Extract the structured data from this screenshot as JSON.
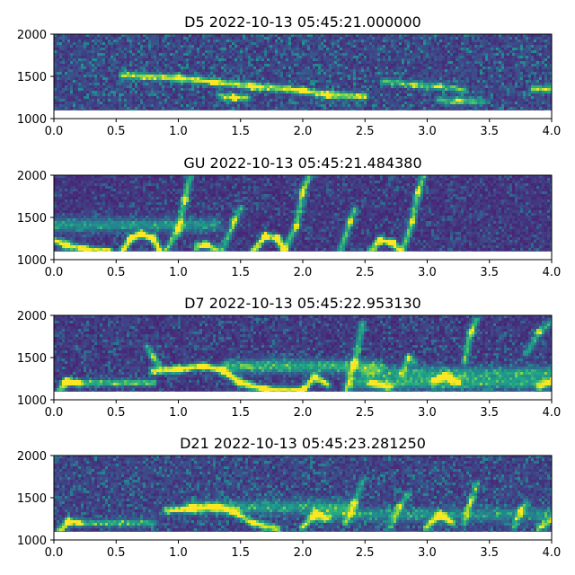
{
  "chart_data": [
    {
      "type": "heatmap",
      "title": "D5 2022-10-13 05:45:21.000000",
      "xlim": [
        0.0,
        4.0
      ],
      "ylim": [
        1000,
        2000
      ],
      "xticks": [
        "0.0",
        "0.5",
        "1.0",
        "1.5",
        "2.0",
        "2.5",
        "3.0",
        "3.5",
        "4.0"
      ],
      "yticks": [
        "1000",
        "1500",
        "2000"
      ],
      "grid": false,
      "colormap": "viridis",
      "band_fill_range": [
        1100,
        2000
      ],
      "background_level": 0.12,
      "noise_level": 0.45,
      "tracks": [
        {
          "points": [
            [
              0.55,
              1510
            ],
            [
              1.0,
              1480
            ],
            [
              1.3,
              1430
            ],
            [
              1.6,
              1380
            ],
            [
              2.0,
              1330
            ],
            [
              2.2,
              1280
            ],
            [
              2.5,
              1260
            ]
          ],
          "intensity": 0.72
        },
        {
          "points": [
            [
              1.35,
              1260
            ],
            [
              1.45,
              1250
            ],
            [
              1.55,
              1240
            ]
          ],
          "intensity": 0.6
        },
        {
          "points": [
            [
              2.65,
              1440
            ],
            [
              2.9,
              1400
            ],
            [
              3.1,
              1380
            ],
            [
              3.3,
              1330
            ]
          ],
          "intensity": 0.45
        },
        {
          "points": [
            [
              3.1,
              1220
            ],
            [
              3.25,
              1210
            ],
            [
              3.45,
              1200
            ]
          ],
          "intensity": 0.45
        },
        {
          "points": [
            [
              3.85,
              1350
            ],
            [
              4.0,
              1350
            ]
          ],
          "intensity": 0.65
        }
      ]
    },
    {
      "type": "heatmap",
      "title": "GU 2022-10-13 05:45:21.484380",
      "xlim": [
        0.0,
        4.0
      ],
      "ylim": [
        1000,
        2000
      ],
      "xticks": [
        "0.0",
        "0.5",
        "1.0",
        "1.5",
        "2.0",
        "2.5",
        "3.0",
        "3.5",
        "4.0"
      ],
      "yticks": [
        "1000",
        "1500",
        "2000"
      ],
      "grid": false,
      "colormap": "viridis",
      "band_fill_range": [
        1100,
        2000
      ],
      "background_level": 0.1,
      "noise_level": 0.3,
      "tracks": [
        {
          "points": [
            [
              0.0,
              1230
            ],
            [
              0.1,
              1170
            ],
            [
              0.25,
              1120
            ],
            [
              0.45,
              1100
            ]
          ],
          "intensity": 0.85
        },
        {
          "points": [
            [
              0.55,
              1100
            ],
            [
              0.62,
              1250
            ],
            [
              0.7,
              1300
            ],
            [
              0.8,
              1250
            ],
            [
              0.85,
              1100
            ]
          ],
          "intensity": 0.9
        },
        {
          "points": [
            [
              0.9,
              1100
            ],
            [
              1.0,
              1350
            ],
            [
              1.05,
              1700
            ],
            [
              1.1,
              2000
            ]
          ],
          "intensity": 0.55
        },
        {
          "points": [
            [
              1.15,
              1150
            ],
            [
              1.22,
              1180
            ],
            [
              1.3,
              1120
            ]
          ],
          "intensity": 0.75
        },
        {
          "points": [
            [
              1.35,
              1100
            ],
            [
              1.45,
              1450
            ],
            [
              1.5,
              1600
            ]
          ],
          "intensity": 0.5
        },
        {
          "points": [
            [
              1.6,
              1100
            ],
            [
              1.7,
              1280
            ],
            [
              1.8,
              1250
            ],
            [
              1.85,
              1100
            ]
          ],
          "intensity": 0.8
        },
        {
          "points": [
            [
              1.85,
              1100
            ],
            [
              1.95,
              1400
            ],
            [
              2.0,
              1800
            ],
            [
              2.05,
              2000
            ]
          ],
          "intensity": 0.55
        },
        {
          "points": [
            [
              2.3,
              1100
            ],
            [
              2.38,
              1450
            ],
            [
              2.42,
              1600
            ]
          ],
          "intensity": 0.5
        },
        {
          "points": [
            [
              2.55,
              1100
            ],
            [
              2.62,
              1230
            ],
            [
              2.72,
              1200
            ],
            [
              2.78,
              1100
            ]
          ],
          "intensity": 0.75
        },
        {
          "points": [
            [
              2.8,
              1100
            ],
            [
              2.88,
              1450
            ],
            [
              2.93,
              1800
            ],
            [
              2.97,
              2000
            ]
          ],
          "intensity": 0.55
        }
      ],
      "bands": [
        {
          "y": 1410,
          "x_range": [
            0.0,
            1.3
          ],
          "intensity": 0.35
        }
      ]
    },
    {
      "type": "heatmap",
      "title": "D7 2022-10-13 05:45:22.953130",
      "xlim": [
        0.0,
        4.0
      ],
      "ylim": [
        1000,
        2000
      ],
      "xticks": [
        "0.0",
        "0.5",
        "1.0",
        "1.5",
        "2.0",
        "2.5",
        "3.0",
        "3.5",
        "4.0"
      ],
      "yticks": [
        "1000",
        "1500",
        "2000"
      ],
      "grid": false,
      "colormap": "viridis",
      "band_fill_range": [
        1100,
        2000
      ],
      "background_level": 0.1,
      "noise_level": 0.35,
      "tracks": [
        {
          "points": [
            [
              0.05,
              1120
            ],
            [
              0.1,
              1220
            ],
            [
              0.2,
              1200
            ]
          ],
          "intensity": 0.7
        },
        {
          "points": [
            [
              0.1,
              1200
            ],
            [
              0.8,
              1200
            ]
          ],
          "intensity": 0.55
        },
        {
          "points": [
            [
              0.8,
              1340
            ],
            [
              1.0,
              1360
            ],
            [
              1.2,
              1400
            ],
            [
              1.35,
              1350
            ],
            [
              1.5,
              1200
            ],
            [
              1.7,
              1120
            ],
            [
              2.0,
              1110
            ]
          ],
          "intensity": 0.9
        },
        {
          "points": [
            [
              0.75,
              1620
            ],
            [
              0.8,
              1500
            ],
            [
              0.85,
              1400
            ]
          ],
          "intensity": 0.45
        },
        {
          "points": [
            [
              2.0,
              1110
            ],
            [
              2.1,
              1270
            ],
            [
              2.2,
              1180
            ]
          ],
          "intensity": 0.75
        },
        {
          "points": [
            [
              2.35,
              1100
            ],
            [
              2.42,
              1450
            ],
            [
              2.48,
              1900
            ]
          ],
          "intensity": 0.5
        },
        {
          "points": [
            [
              2.55,
              1200
            ],
            [
              2.7,
              1150
            ]
          ],
          "intensity": 0.7
        },
        {
          "points": [
            [
              2.8,
              1300
            ],
            [
              2.85,
              1500
            ],
            [
              2.9,
              1450
            ]
          ],
          "intensity": 0.45
        },
        {
          "points": [
            [
              3.05,
              1220
            ],
            [
              3.15,
              1280
            ],
            [
              3.25,
              1200
            ]
          ],
          "intensity": 0.7
        },
        {
          "points": [
            [
              3.3,
              1450
            ],
            [
              3.35,
              1800
            ],
            [
              3.4,
              1950
            ]
          ],
          "intensity": 0.5
        },
        {
          "points": [
            [
              3.8,
              1550
            ],
            [
              3.9,
              1800
            ],
            [
              4.0,
              1920
            ]
          ],
          "intensity": 0.45
        },
        {
          "points": [
            [
              3.9,
              1150
            ],
            [
              4.0,
              1220
            ]
          ],
          "intensity": 0.65
        }
      ],
      "bands": [
        {
          "y": 1395,
          "x_range": [
            1.4,
            2.6
          ],
          "intensity": 0.45
        },
        {
          "y": 1320,
          "x_range": [
            2.5,
            4.0
          ],
          "intensity": 0.35
        },
        {
          "y": 1200,
          "x_range": [
            2.4,
            4.0
          ],
          "intensity": 0.4
        }
      ]
    },
    {
      "type": "heatmap",
      "title": "D21 2022-10-13 05:45:23.281250",
      "xlim": [
        0.0,
        4.0
      ],
      "ylim": [
        1000,
        2000
      ],
      "xticks": [
        "0.0",
        "0.5",
        "1.0",
        "1.5",
        "2.0",
        "2.5",
        "3.0",
        "3.5",
        "4.0"
      ],
      "yticks": [
        "1000",
        "1500",
        "2000"
      ],
      "grid": false,
      "colormap": "viridis",
      "band_fill_range": [
        1100,
        2000
      ],
      "background_level": 0.12,
      "noise_level": 0.4,
      "tracks": [
        {
          "points": [
            [
              0.05,
              1120
            ],
            [
              0.12,
              1220
            ],
            [
              0.2,
              1200
            ]
          ],
          "intensity": 0.7
        },
        {
          "points": [
            [
              0.2,
              1200
            ],
            [
              0.8,
              1200
            ]
          ],
          "intensity": 0.45
        },
        {
          "points": [
            [
              0.9,
              1350
            ],
            [
              1.1,
              1370
            ],
            [
              1.3,
              1390
            ],
            [
              1.45,
              1330
            ],
            [
              1.6,
              1200
            ],
            [
              1.8,
              1130
            ]
          ],
          "intensity": 0.75
        },
        {
          "points": [
            [
              2.0,
              1150
            ],
            [
              2.1,
              1300
            ],
            [
              2.2,
              1250
            ]
          ],
          "intensity": 0.7
        },
        {
          "points": [
            [
              2.35,
              1200
            ],
            [
              2.42,
              1450
            ],
            [
              2.48,
              1700
            ]
          ],
          "intensity": 0.4
        },
        {
          "points": [
            [
              2.7,
              1150
            ],
            [
              2.78,
              1400
            ],
            [
              2.85,
              1550
            ]
          ],
          "intensity": 0.4
        },
        {
          "points": [
            [
              3.0,
              1150
            ],
            [
              3.1,
              1300
            ],
            [
              3.2,
              1200
            ]
          ],
          "intensity": 0.75
        },
        {
          "points": [
            [
              3.3,
              1200
            ],
            [
              3.35,
              1450
            ],
            [
              3.4,
              1650
            ]
          ],
          "intensity": 0.4
        },
        {
          "points": [
            [
              3.7,
              1150
            ],
            [
              3.75,
              1350
            ],
            [
              3.8,
              1450
            ]
          ],
          "intensity": 0.4
        },
        {
          "points": [
            [
              3.9,
              1150
            ],
            [
              4.0,
              1230
            ]
          ],
          "intensity": 0.65
        }
      ],
      "bands": [
        {
          "y": 1390,
          "x_range": [
            1.1,
            2.4
          ],
          "intensity": 0.35
        },
        {
          "y": 1300,
          "x_range": [
            2.1,
            4.0
          ],
          "intensity": 0.3
        }
      ]
    }
  ]
}
